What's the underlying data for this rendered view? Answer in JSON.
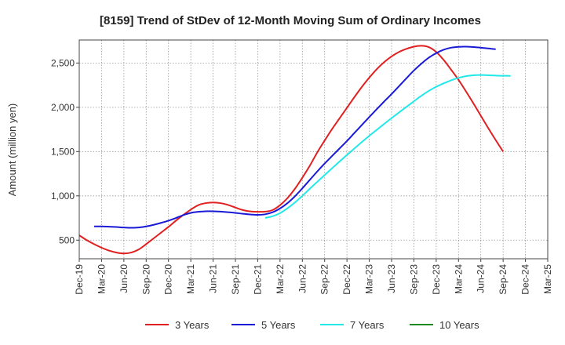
{
  "chart_data": {
    "type": "line",
    "title": "[8159]  Trend of StDev of 12-Month Moving Sum of Ordinary Incomes",
    "xlabel": "",
    "ylabel": "Amount (million yen)",
    "ylim": [
      290,
      2760
    ],
    "yticks": [
      500,
      1000,
      1500,
      2000,
      2500
    ],
    "ytick_labels": [
      "500",
      "1,000",
      "1,500",
      "2,000",
      "2,500"
    ],
    "x_start": "Dec-19",
    "x_count": 64,
    "xticks": [
      0,
      3,
      6,
      9,
      12,
      15,
      18,
      21,
      24,
      27,
      30,
      33,
      36,
      39,
      42,
      45,
      48,
      51,
      54,
      57,
      60,
      63
    ],
    "xtick_labels": [
      "Dec-19",
      "Mar-20",
      "Jun-20",
      "Sep-20",
      "Dec-20",
      "Mar-21",
      "Jun-21",
      "Sep-21",
      "Dec-21",
      "Mar-22",
      "Jun-22",
      "Sep-22",
      "Dec-22",
      "Mar-23",
      "Jun-23",
      "Sep-23",
      "Dec-23",
      "Mar-24",
      "Jun-24",
      "Sep-24",
      "Dec-24",
      "Mar-25"
    ],
    "grid": true,
    "legend_position": "bottom",
    "series": [
      {
        "name": "3 Years",
        "color": "#e02020",
        "start": 0,
        "values": [
          555,
          500,
          455,
          415,
          382,
          360,
          350,
          360,
          395,
          455,
          520,
          585,
          650,
          720,
          785,
          845,
          895,
          918,
          925,
          918,
          898,
          868,
          840,
          825,
          820,
          822,
          840,
          895,
          975,
          1080,
          1205,
          1340,
          1490,
          1625,
          1755,
          1875,
          1995,
          2115,
          2230,
          2335,
          2430,
          2510,
          2575,
          2625,
          2660,
          2685,
          2695,
          2680,
          2625,
          2535,
          2425,
          2310,
          2180,
          2045,
          1905,
          1765,
          1630,
          1500
        ]
      },
      {
        "name": "5 Years",
        "color": "#1a1ad6",
        "start": 2,
        "values": [
          655,
          655,
          652,
          648,
          643,
          640,
          643,
          655,
          673,
          695,
          720,
          750,
          783,
          808,
          820,
          826,
          826,
          822,
          816,
          808,
          798,
          790,
          786,
          792,
          815,
          858,
          918,
          995,
          1085,
          1180,
          1275,
          1365,
          1450,
          1535,
          1620,
          1710,
          1800,
          1890,
          1978,
          2065,
          2150,
          2238,
          2328,
          2415,
          2492,
          2560,
          2612,
          2650,
          2673,
          2683,
          2685,
          2680,
          2673,
          2665,
          2655
        ]
      },
      {
        "name": "7 Years",
        "color": "#22e8e8",
        "start": 25,
        "values": [
          752,
          770,
          805,
          860,
          925,
          1000,
          1080,
          1158,
          1235,
          1312,
          1388,
          1462,
          1535,
          1608,
          1678,
          1745,
          1812,
          1878,
          1942,
          2005,
          2068,
          2130,
          2185,
          2232,
          2270,
          2305,
          2332,
          2352,
          2362,
          2365,
          2362,
          2358,
          2356,
          2355
        ]
      },
      {
        "name": "10 Years",
        "color": "#1f8a1f",
        "start": 0,
        "values": []
      }
    ]
  }
}
